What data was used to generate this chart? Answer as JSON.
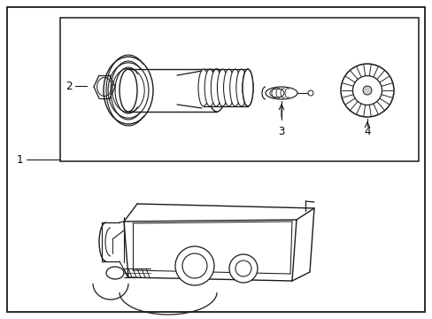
{
  "bg_color": "#ffffff",
  "line_color": "#1a1a1a",
  "label_1": "1",
  "label_2": "2",
  "label_3": "3",
  "label_4": "4",
  "fig_width": 4.89,
  "fig_height": 3.6,
  "font_size": 8.5
}
